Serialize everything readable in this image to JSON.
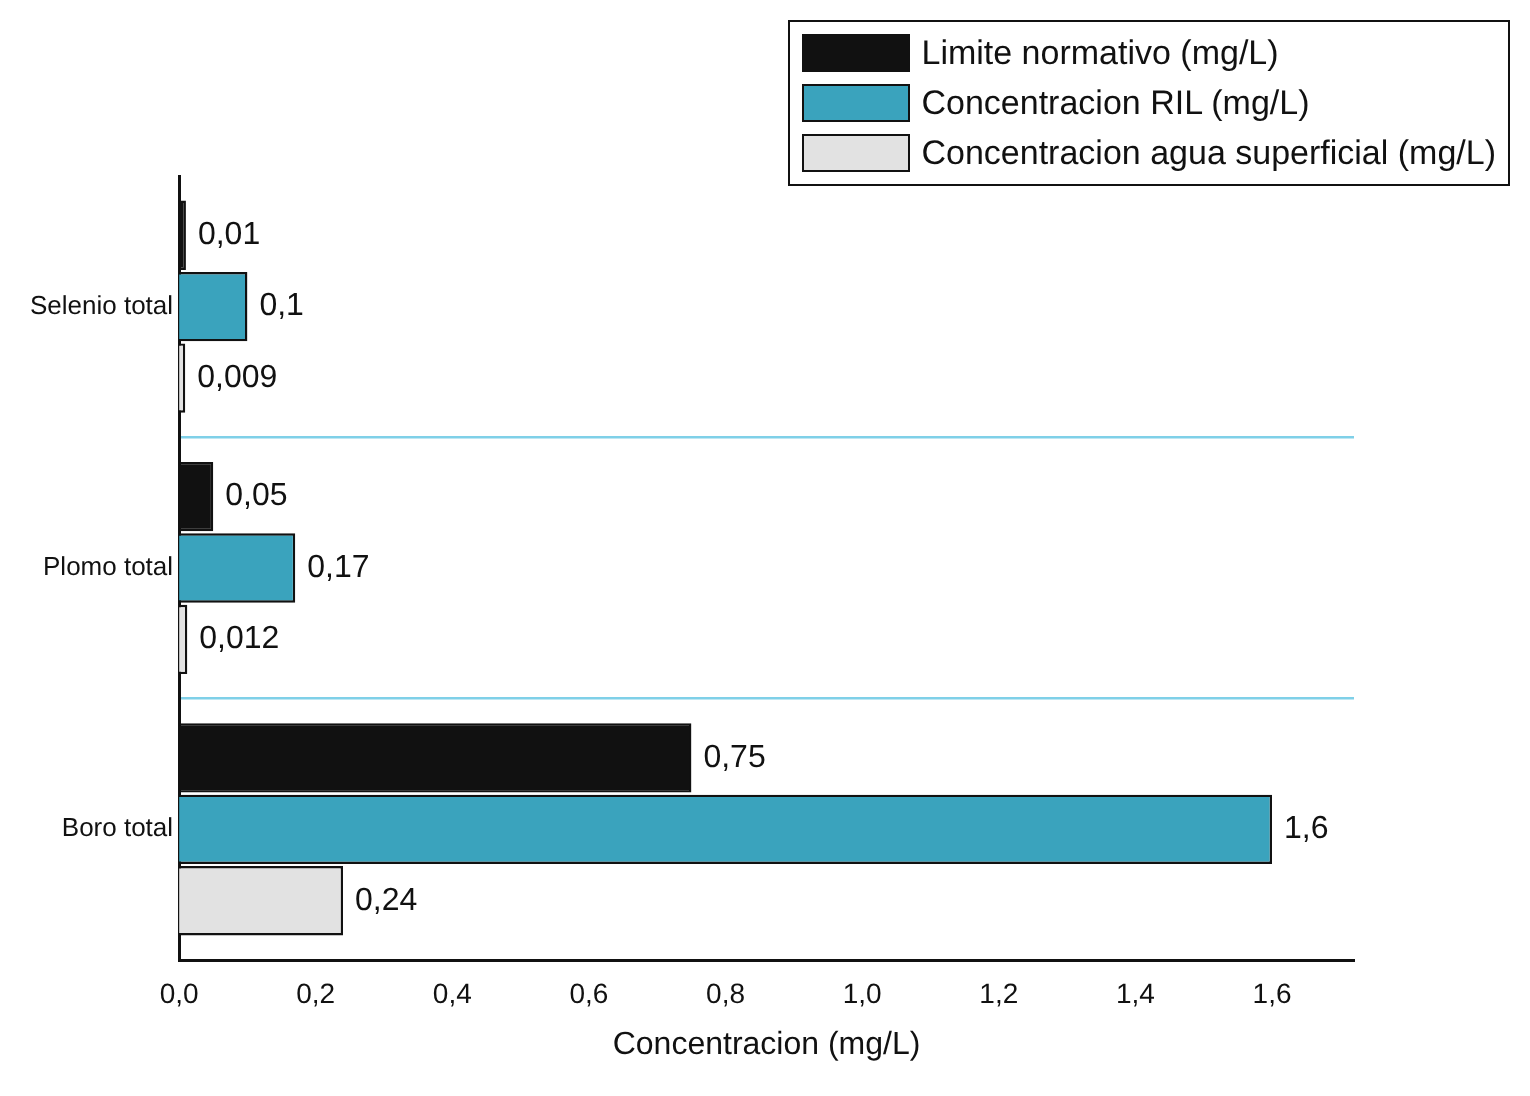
{
  "chart_data": {
    "type": "bar",
    "orientation": "horizontal",
    "xlabel": "Concentracion (mg/L)",
    "categories": [
      "Selenio total",
      "Plomo total",
      "Boro total"
    ],
    "series": [
      {
        "name": "Limite normativo (mg/L)",
        "color": "#111111",
        "values": [
          0.01,
          0.05,
          0.75
        ],
        "value_labels": [
          "0,01",
          "0,05",
          "0,75"
        ]
      },
      {
        "name": "Concentracion RIL (mg/L)",
        "color": "#3aa3bd",
        "values": [
          0.1,
          0.17,
          1.6
        ],
        "value_labels": [
          "0,1",
          "0,17",
          "1,6"
        ]
      },
      {
        "name": "Concentracion agua superficial (mg/L)",
        "color": "#e2e2e2",
        "values": [
          0.009,
          0.012,
          0.24
        ],
        "value_labels": [
          "0,009",
          "0,012",
          "0,24"
        ]
      }
    ],
    "xlim": [
      0,
      1.72
    ],
    "xticks": [
      {
        "value": 0,
        "label": "0,0"
      },
      {
        "value": 0.2,
        "label": "0,2"
      },
      {
        "value": 0.4,
        "label": "0,4"
      },
      {
        "value": 0.6,
        "label": "0,6"
      },
      {
        "value": 0.8,
        "label": "0,8"
      },
      {
        "value": 1.0,
        "label": "1,0"
      },
      {
        "value": 1.2,
        "label": "1,2"
      },
      {
        "value": 1.4,
        "label": "1,4"
      },
      {
        "value": 1.6,
        "label": "1,6"
      }
    ],
    "grid": "y",
    "legend": "top right"
  }
}
